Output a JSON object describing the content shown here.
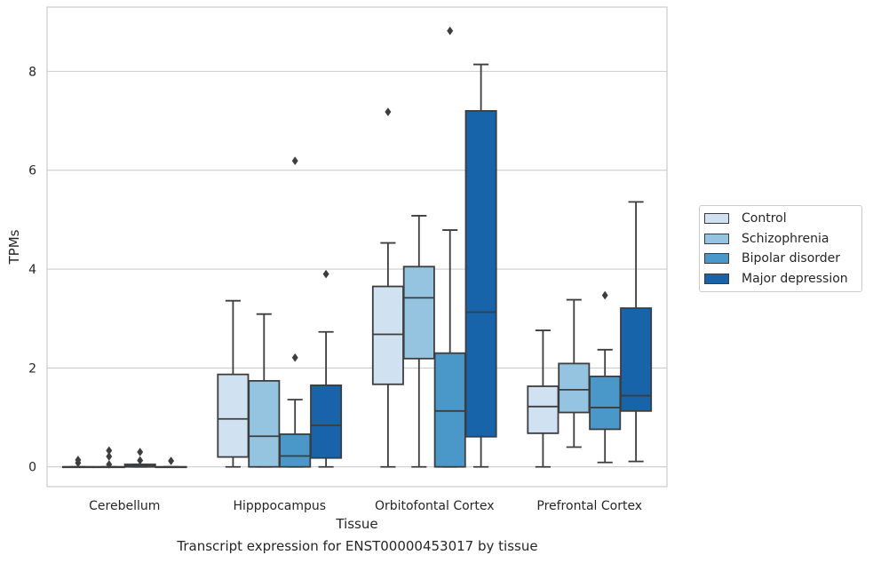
{
  "caption": "Transcript expression for ENST00000453017 by tissue",
  "chart_data": {
    "type": "box",
    "xlabel": "Tissue",
    "ylabel": "TPMs",
    "ylim": [
      -0.4,
      9.3
    ],
    "yticks": [
      0,
      2,
      4,
      6,
      8
    ],
    "grid": "horizontal",
    "legend_position": "right",
    "categories": [
      "Cerebellum",
      "Hipppocampus",
      "Orbitofontal Cortex",
      "Prefrontal Cortex"
    ],
    "series": [
      {
        "name": "Control",
        "color": "#d0e1f2",
        "boxes": [
          {
            "whisker_low": 0,
            "q1": 0,
            "median": 0,
            "q3": 0,
            "whisker_high": 0,
            "outliers": [
              0.08,
              0.14
            ]
          },
          {
            "whisker_low": 0,
            "q1": 0.2,
            "median": 0.97,
            "q3": 1.87,
            "whisker_high": 3.36,
            "outliers": []
          },
          {
            "whisker_low": 0,
            "q1": 1.67,
            "median": 2.68,
            "q3": 3.65,
            "whisker_high": 4.53,
            "outliers": [
              7.18
            ]
          },
          {
            "whisker_low": 0,
            "q1": 0.68,
            "median": 1.22,
            "q3": 1.63,
            "whisker_high": 2.76,
            "outliers": []
          }
        ]
      },
      {
        "name": "Schizophrenia",
        "color": "#94c4df",
        "boxes": [
          {
            "whisker_low": 0,
            "q1": 0,
            "median": 0,
            "q3": 0,
            "whisker_high": 0,
            "outliers": [
              0.05,
              0.21,
              0.33
            ]
          },
          {
            "whisker_low": 0,
            "q1": 0,
            "median": 0.62,
            "q3": 1.74,
            "whisker_high": 3.09,
            "outliers": []
          },
          {
            "whisker_low": 0,
            "q1": 2.19,
            "median": 3.42,
            "q3": 4.05,
            "whisker_high": 5.08,
            "outliers": []
          },
          {
            "whisker_low": 0.4,
            "q1": 1.1,
            "median": 1.56,
            "q3": 2.09,
            "whisker_high": 3.38,
            "outliers": []
          }
        ]
      },
      {
        "name": "Bipolar disorder",
        "color": "#4a98c9",
        "boxes": [
          {
            "whisker_low": 0,
            "q1": 0,
            "median": 0.02,
            "q3": 0.05,
            "whisker_high": 0.05,
            "outliers": [
              0.13,
              0.3
            ]
          },
          {
            "whisker_low": 0,
            "q1": 0,
            "median": 0.22,
            "q3": 0.66,
            "whisker_high": 1.36,
            "outliers": [
              2.21,
              6.19
            ]
          },
          {
            "whisker_low": 0,
            "q1": 0,
            "median": 1.13,
            "q3": 2.3,
            "whisker_high": 4.79,
            "outliers": [
              8.82
            ]
          },
          {
            "whisker_low": 0.09,
            "q1": 0.76,
            "median": 1.2,
            "q3": 1.83,
            "whisker_high": 2.37,
            "outliers": [
              3.47
            ]
          }
        ]
      },
      {
        "name": "Major depression",
        "color": "#1764ab",
        "boxes": [
          {
            "whisker_low": 0,
            "q1": 0,
            "median": 0,
            "q3": 0,
            "whisker_high": 0,
            "outliers": [
              0.12
            ]
          },
          {
            "whisker_low": 0,
            "q1": 0.18,
            "median": 0.84,
            "q3": 1.65,
            "whisker_high": 2.73,
            "outliers": [
              3.9
            ]
          },
          {
            "whisker_low": 0,
            "q1": 0.61,
            "median": 3.13,
            "q3": 7.2,
            "whisker_high": 8.14,
            "outliers": []
          },
          {
            "whisker_low": 0.11,
            "q1": 1.13,
            "median": 1.44,
            "q3": 3.21,
            "whisker_high": 5.36,
            "outliers": []
          }
        ]
      }
    ]
  }
}
